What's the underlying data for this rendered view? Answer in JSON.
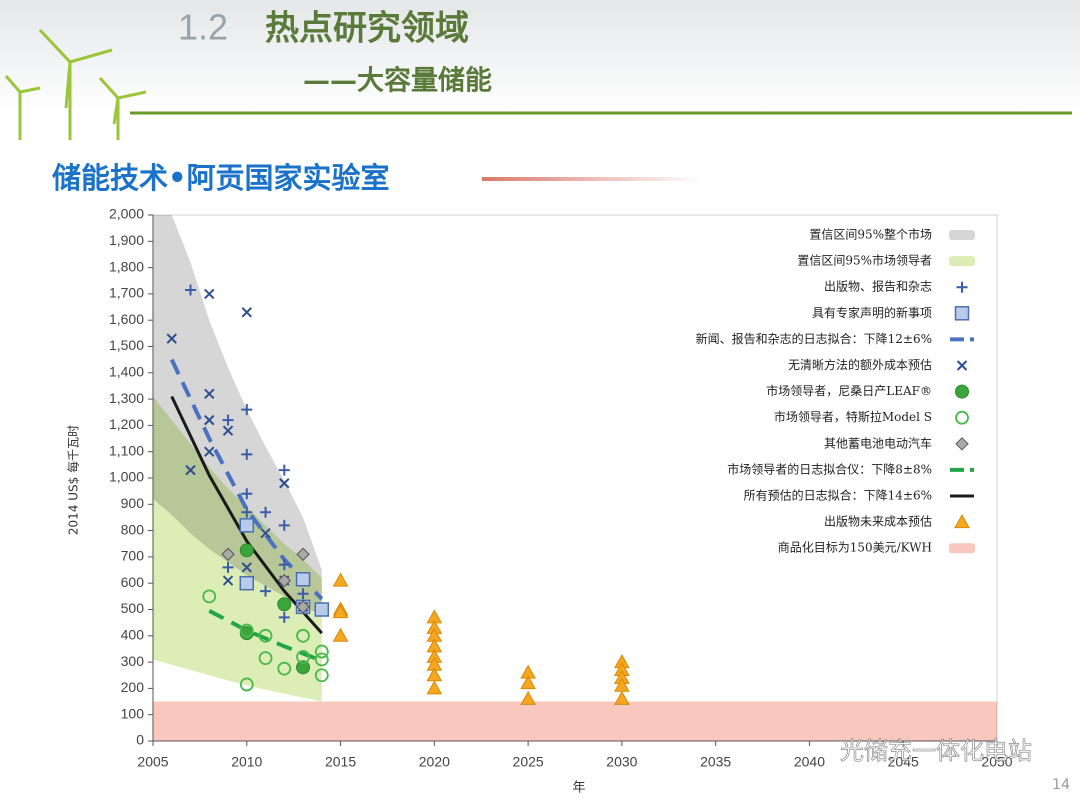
{
  "slide": {
    "number": "1.2",
    "title": "热点研究领域",
    "subtitle": "——大容量储能",
    "section": "储能技术•阿贡国家实验室",
    "page": "14",
    "watermark": "光储充一体化电站"
  },
  "chart_data": {
    "type": "scatter",
    "xlabel": "年",
    "ylabel": "2014 US$ 每千瓦时",
    "xlim": [
      2005,
      2050
    ],
    "xticks": [
      2005,
      2010,
      2015,
      2020,
      2025,
      2030,
      2035,
      2040,
      2045,
      2050
    ],
    "ylim": [
      0,
      2000
    ],
    "yticks": [
      0,
      100,
      200,
      300,
      400,
      500,
      600,
      700,
      800,
      900,
      {
        "value": 1000,
        "label": "1,000"
      },
      {
        "value": 1100,
        "label": "1,100"
      },
      {
        "value": 1200,
        "label": "1,200"
      },
      {
        "value": 1300,
        "label": "1,300"
      },
      {
        "value": 1400,
        "label": "1,400"
      },
      {
        "value": 1500,
        "label": "1,500"
      },
      {
        "value": 1600,
        "label": "1,600"
      },
      {
        "value": 1700,
        "label": "1,700"
      },
      {
        "value": 1800,
        "label": "1,800"
      },
      {
        "value": 1900,
        "label": "1,900"
      },
      {
        "value": 2000,
        "label": "2,000"
      }
    ],
    "legend": "upper right",
    "series": [
      {
        "name": "置信区间95%整个市场",
        "kind": "band",
        "color": "#d6d6d6",
        "x": [
          2005,
          2006,
          2007,
          2008,
          2009,
          2010,
          2011,
          2012,
          2013,
          2014
        ],
        "upper": [
          2000,
          2000,
          1820,
          1600,
          1420,
          1260,
          1120,
          990,
          850,
          650
        ],
        "lower": [
          920,
          860,
          790,
          730,
          680,
          630,
          590,
          550,
          510,
          480
        ]
      },
      {
        "name": "置信区间95%市场领导者",
        "kind": "band",
        "color": "#dcedb5",
        "x": [
          2005,
          2006,
          2007,
          2008,
          2009,
          2010,
          2011,
          2012,
          2013,
          2014
        ],
        "upper": [
          1310,
          1220,
          1130,
          1040,
          960,
          890,
          820,
          750,
          690,
          620
        ],
        "lower": [
          310,
          290,
          270,
          250,
          230,
          212,
          195,
          180,
          165,
          150
        ]
      },
      {
        "name": "出版物、报告和杂志",
        "kind": "scatter",
        "marker": "plus",
        "color": "#3b5ca8",
        "x": [
          2007,
          2009,
          2009,
          2010,
          2010,
          2010,
          2010,
          2011,
          2011,
          2012,
          2012,
          2012,
          2012,
          2013
        ],
        "values": [
          1715,
          1220,
          660,
          1260,
          1090,
          940,
          870,
          870,
          570,
          1030,
          820,
          670,
          470,
          560
        ]
      },
      {
        "name": "具有专家声明的新事项",
        "kind": "scatter",
        "marker": "square",
        "color": "#b9cbea",
        "x": [
          2010,
          2010,
          2013,
          2013,
          2014
        ],
        "values": [
          820,
          600,
          615,
          510,
          500
        ]
      },
      {
        "name": "新闻、报告和杂志的日志拟合：下降12±6%",
        "kind": "line",
        "dash": true,
        "color": "#4a72c0",
        "x": [
          2006,
          2008,
          2010,
          2012,
          2014
        ],
        "values": [
          1450,
          1150,
          880,
          690,
          540
        ]
      },
      {
        "name": "无清晰方法的额外成本预估",
        "kind": "scatter",
        "marker": "cross",
        "color": "#2f4f8f",
        "x": [
          2006,
          2007,
          2008,
          2008,
          2008,
          2008,
          2009,
          2009,
          2010,
          2010,
          2011,
          2012,
          2012,
          2013
        ],
        "values": [
          1530,
          1030,
          1700,
          1320,
          1220,
          1100,
          1180,
          610,
          1630,
          660,
          790,
          980,
          610,
          510
        ]
      },
      {
        "name": "市场领导者，尼桑日产LEAF®",
        "kind": "scatter",
        "marker": "dot",
        "color": "#3ba53b",
        "x": [
          2010,
          2010,
          2012,
          2013
        ],
        "values": [
          725,
          410,
          520,
          280
        ]
      },
      {
        "name": "市场领导者，特斯拉Model S",
        "kind": "scatter",
        "marker": "ring",
        "color": "#4cb84c",
        "x": [
          2008,
          2010,
          2010,
          2011,
          2011,
          2012,
          2013,
          2013,
          2014,
          2014,
          2014
        ],
        "values": [
          550,
          215,
          420,
          400,
          315,
          275,
          400,
          320,
          340,
          310,
          250
        ]
      },
      {
        "name": "其他蓄电池电动汽车",
        "kind": "scatter",
        "marker": "diamond",
        "color": "#a9a9a9",
        "x": [
          2009,
          2012,
          2013,
          2013
        ],
        "values": [
          710,
          610,
          710,
          510
        ]
      },
      {
        "name": "市场领导者的日志拟合仪：下降8±8%",
        "kind": "line",
        "dash": true,
        "color": "#23a645",
        "x": [
          2008,
          2010,
          2012,
          2014
        ],
        "values": [
          495,
          420,
          360,
          305
        ]
      },
      {
        "name": "所有预估的日志拟合：下降14±6%",
        "kind": "line",
        "dash": false,
        "color": "#1a1a1a",
        "x": [
          2006,
          2008,
          2010,
          2012,
          2014
        ],
        "values": [
          1310,
          1010,
          760,
          570,
          410
        ]
      },
      {
        "name": "出版物未来成本预估",
        "kind": "scatter",
        "marker": "triangle",
        "color": "#f5a623",
        "x": [
          2015,
          2015,
          2015,
          2015,
          2020,
          2020,
          2020,
          2020,
          2020,
          2020,
          2020,
          2020,
          2025,
          2025,
          2025,
          2030,
          2030,
          2030,
          2030,
          2030
        ],
        "values": [
          610,
          500,
          490,
          400,
          470,
          430,
          400,
          360,
          320,
          290,
          250,
          200,
          260,
          220,
          160,
          300,
          270,
          240,
          210,
          160
        ]
      },
      {
        "name": "商品化目标为150美元/KWH",
        "kind": "band",
        "color": "#f9c7bd",
        "x": [
          2005,
          2050
        ],
        "upper": [
          150,
          150
        ],
        "lower": [
          0,
          0
        ]
      }
    ]
  }
}
